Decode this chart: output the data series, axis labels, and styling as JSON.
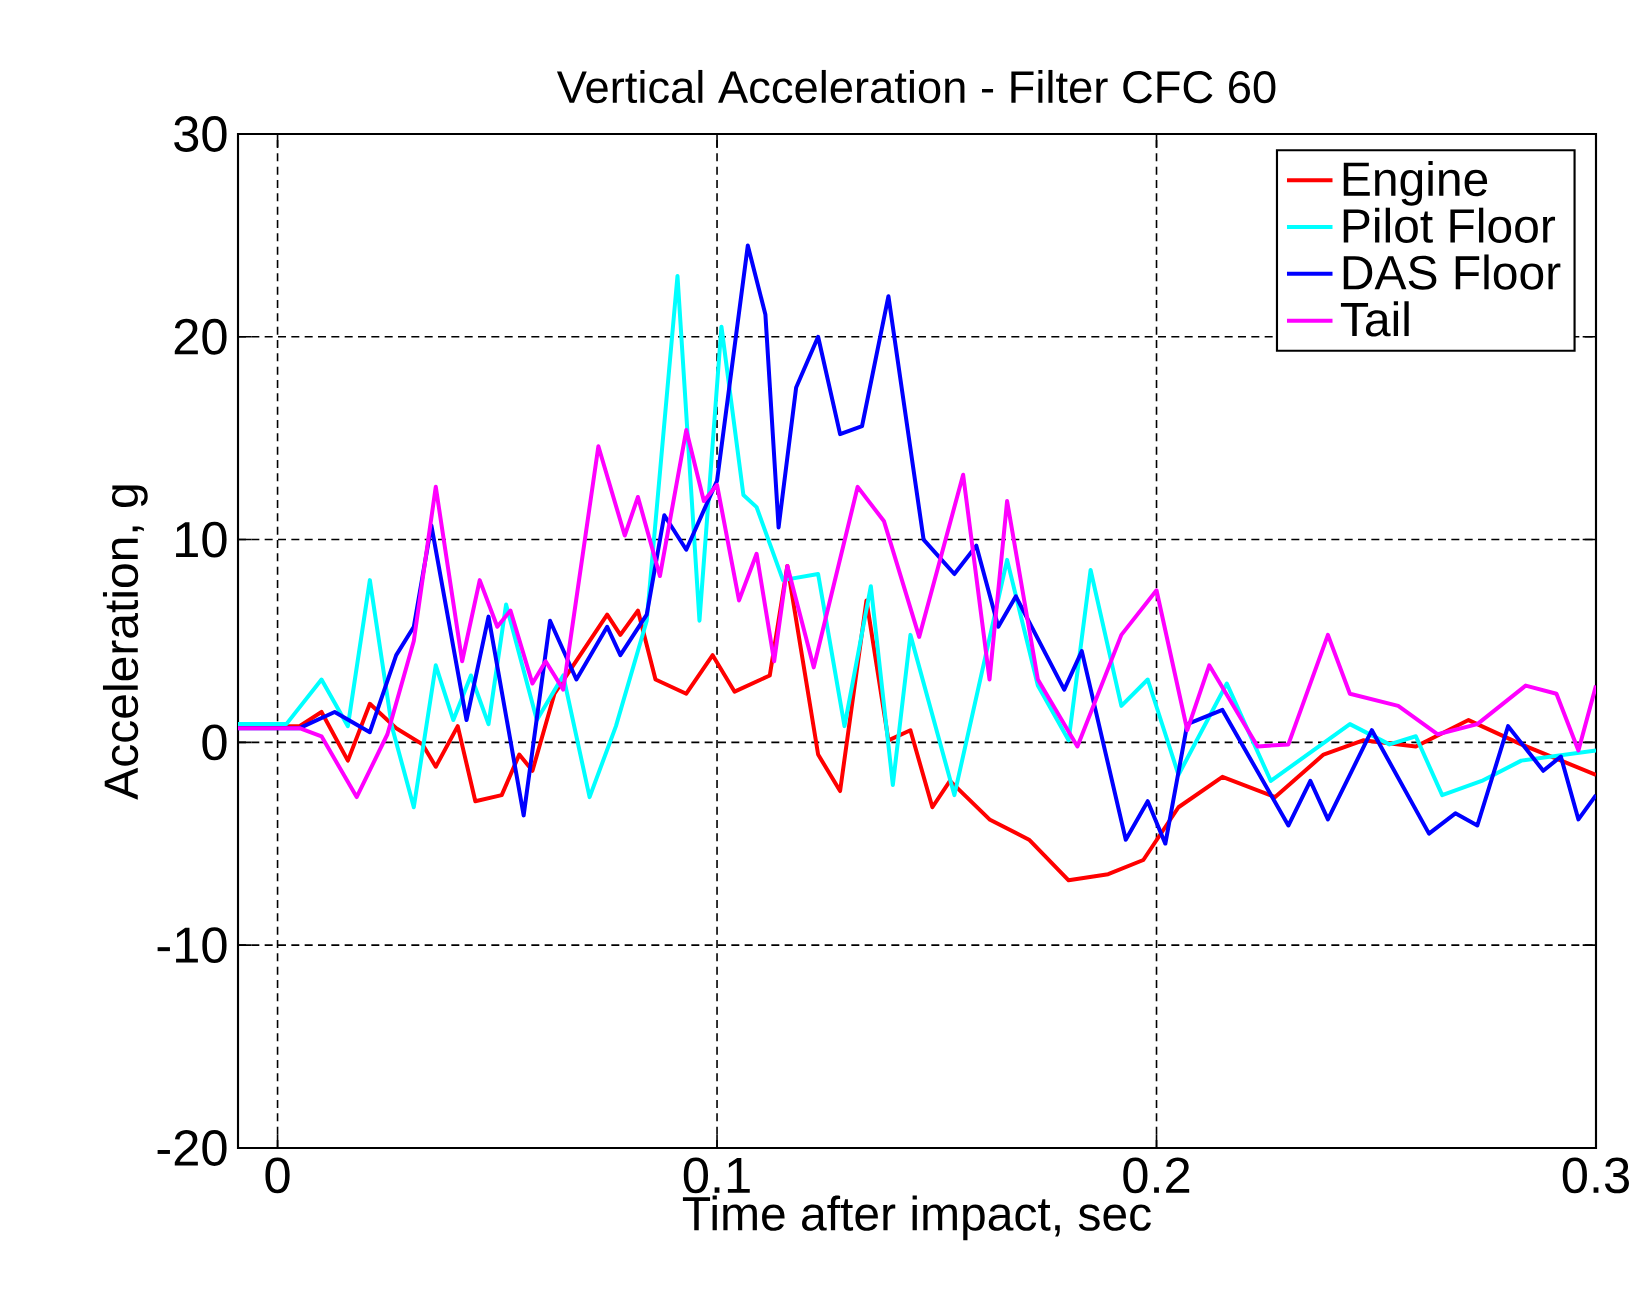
{
  "chart_data": {
    "type": "line",
    "title": "Vertical Acceleration - Filter CFC 60",
    "xlabel": "Time after impact, sec",
    "ylabel": "Acceleration, g",
    "xlim": [
      -0.009,
      0.3
    ],
    "ylim": [
      -20,
      30
    ],
    "xticks": [
      0,
      0.1,
      0.2,
      0.3
    ],
    "yticks": [
      -20,
      -10,
      0,
      10,
      20,
      30
    ],
    "grid": true,
    "legend": "top right",
    "marker": "none",
    "line_style": "solid",
    "series": [
      {
        "name": "Engine",
        "color": "#ff0000",
        "x": [
          -0.009,
          0.005,
          0.01,
          0.016,
          0.021,
          0.027,
          0.033,
          0.036,
          0.041,
          0.045,
          0.051,
          0.055,
          0.058,
          0.063,
          0.075,
          0.078,
          0.082,
          0.086,
          0.093,
          0.099,
          0.104,
          0.112,
          0.116,
          0.123,
          0.128,
          0.134,
          0.139,
          0.144,
          0.149,
          0.153,
          0.162,
          0.171,
          0.18,
          0.189,
          0.197,
          0.205,
          0.215,
          0.227,
          0.238,
          0.247,
          0.259,
          0.271,
          0.283,
          0.3
        ],
        "values": [
          0.8,
          0.8,
          1.5,
          -0.9,
          1.9,
          0.7,
          -0.1,
          -1.2,
          0.8,
          -2.9,
          -2.6,
          -0.6,
          -1.4,
          2.4,
          6.3,
          5.3,
          6.5,
          3.1,
          2.4,
          4.3,
          2.5,
          3.3,
          8.7,
          -0.6,
          -2.4,
          7.0,
          0.1,
          0.6,
          -3.2,
          -1.9,
          -3.8,
          -4.8,
          -6.8,
          -6.5,
          -5.8,
          -3.2,
          -1.7,
          -2.7,
          -0.6,
          0.1,
          -0.2,
          1.1,
          -0.1,
          -1.6
        ]
      },
      {
        "name": "Pilot Floor",
        "color": "#00ffff",
        "x": [
          -0.009,
          0.002,
          0.01,
          0.016,
          0.021,
          0.026,
          0.031,
          0.036,
          0.04,
          0.044,
          0.048,
          0.052,
          0.059,
          0.065,
          0.071,
          0.077,
          0.084,
          0.091,
          0.096,
          0.101,
          0.106,
          0.109,
          0.115,
          0.123,
          0.129,
          0.135,
          0.14,
          0.144,
          0.154,
          0.166,
          0.173,
          0.18,
          0.185,
          0.192,
          0.198,
          0.205,
          0.216,
          0.226,
          0.244,
          0.253,
          0.259,
          0.265,
          0.274,
          0.283,
          0.3
        ],
        "values": [
          0.9,
          0.9,
          3.1,
          0.8,
          8.0,
          0.8,
          -3.2,
          3.8,
          1.1,
          3.3,
          0.9,
          6.8,
          1.1,
          3.3,
          -2.7,
          0.8,
          6.0,
          23.0,
          6.0,
          20.5,
          12.2,
          11.6,
          8.0,
          8.3,
          0.8,
          7.7,
          -2.1,
          5.3,
          -2.6,
          9.0,
          2.8,
          0.1,
          8.5,
          1.8,
          3.1,
          -1.6,
          2.9,
          -1.9,
          0.9,
          -0.1,
          0.3,
          -2.6,
          -1.9,
          -0.9,
          -0.4
        ]
      },
      {
        "name": "DAS Floor",
        "color": "#0000ff",
        "x": [
          -0.009,
          0.005,
          0.013,
          0.021,
          0.027,
          0.031,
          0.035,
          0.043,
          0.048,
          0.056,
          0.062,
          0.068,
          0.075,
          0.078,
          0.084,
          0.088,
          0.093,
          0.1,
          0.107,
          0.111,
          0.114,
          0.118,
          0.123,
          0.128,
          0.133,
          0.139,
          0.147,
          0.154,
          0.159,
          0.164,
          0.168,
          0.179,
          0.183,
          0.193,
          0.198,
          0.202,
          0.207,
          0.215,
          0.23,
          0.235,
          0.239,
          0.249,
          0.262,
          0.268,
          0.273,
          0.28,
          0.288,
          0.292,
          0.296,
          0.3
        ],
        "values": [
          0.7,
          0.7,
          1.5,
          0.5,
          4.3,
          5.7,
          10.7,
          1.1,
          6.2,
          -3.6,
          6.0,
          3.1,
          5.7,
          4.3,
          6.3,
          11.2,
          9.5,
          12.9,
          24.5,
          21.1,
          10.6,
          17.5,
          20.0,
          15.2,
          15.6,
          22.0,
          10.0,
          8.3,
          9.7,
          5.7,
          7.2,
          2.6,
          4.5,
          -4.8,
          -2.9,
          -5.0,
          0.9,
          1.6,
          -4.1,
          -1.9,
          -3.8,
          0.6,
          -4.5,
          -3.5,
          -4.1,
          0.8,
          -1.4,
          -0.7,
          -3.8,
          -2.6
        ]
      },
      {
        "name": "Tail",
        "color": "#ff00ff",
        "x": [
          -0.009,
          0.005,
          0.01,
          0.018,
          0.025,
          0.031,
          0.036,
          0.042,
          0.046,
          0.05,
          0.053,
          0.058,
          0.061,
          0.065,
          0.073,
          0.079,
          0.082,
          0.087,
          0.093,
          0.097,
          0.1,
          0.105,
          0.109,
          0.113,
          0.116,
          0.122,
          0.132,
          0.138,
          0.146,
          0.156,
          0.162,
          0.166,
          0.173,
          0.182,
          0.192,
          0.2,
          0.207,
          0.212,
          0.223,
          0.23,
          0.239,
          0.244,
          0.255,
          0.264,
          0.273,
          0.284,
          0.291,
          0.296,
          0.3
        ],
        "values": [
          0.7,
          0.7,
          0.3,
          -2.7,
          0.4,
          5.0,
          12.6,
          4.0,
          8.0,
          5.7,
          6.5,
          2.9,
          4.0,
          2.6,
          14.6,
          10.2,
          12.1,
          8.2,
          15.4,
          11.9,
          12.7,
          7.0,
          9.3,
          4.0,
          8.7,
          3.7,
          12.6,
          10.9,
          5.2,
          13.2,
          3.1,
          11.9,
          3.1,
          -0.2,
          5.3,
          7.5,
          0.6,
          3.8,
          -0.2,
          -0.1,
          5.3,
          2.4,
          1.8,
          0.4,
          0.9,
          2.8,
          2.4,
          -0.4,
          2.8
        ]
      }
    ]
  }
}
